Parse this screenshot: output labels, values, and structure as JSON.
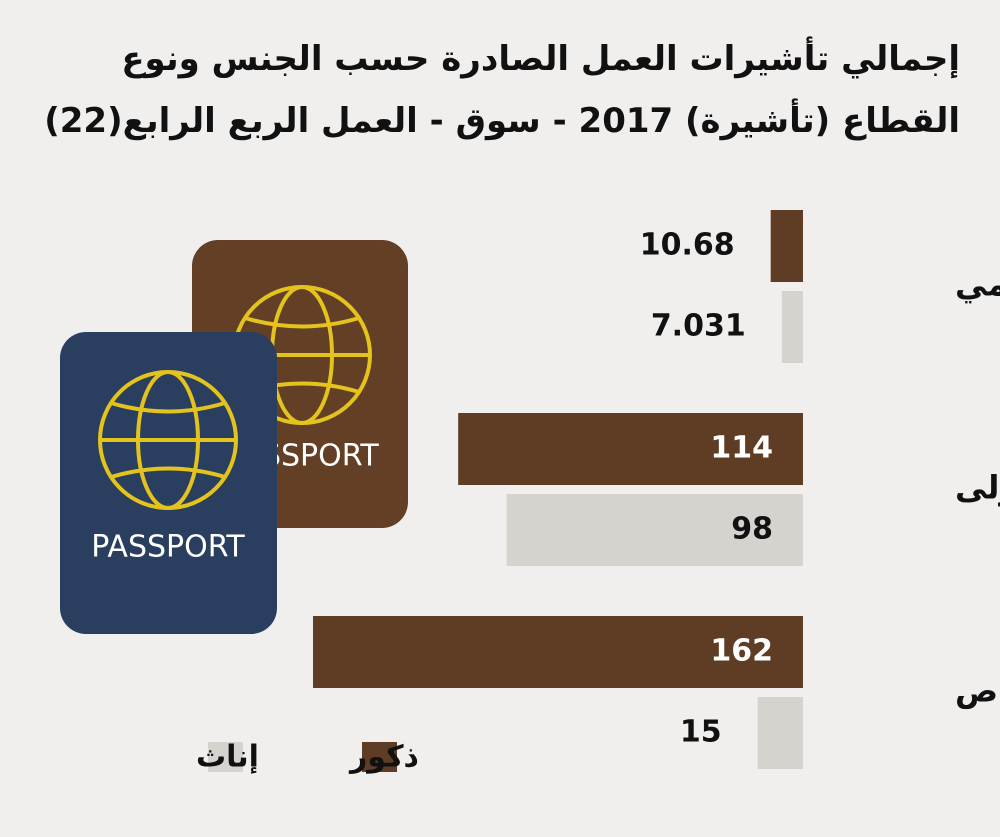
{
  "chart_data": {
    "type": "hbar",
    "title": "إجمالي تأشيرات العمل الصادرة حسب الجنس ونوع القطاع (تأشيرة) 2017 - سوق - العمل الربع الرابع(22)",
    "categories": [
      "حكومي",
      "منزلى",
      "خاص"
    ],
    "series": [
      {
        "name": "ذكور",
        "color": "#5f3d24",
        "values": [
          10.68,
          114,
          162
        ]
      },
      {
        "name": "إناث",
        "color": "#d6d3cf",
        "values": [
          7.031,
          98,
          15
        ]
      }
    ],
    "legend": "bottom-left"
  },
  "illustration": {
    "passport_label": "PASSPORT"
  }
}
